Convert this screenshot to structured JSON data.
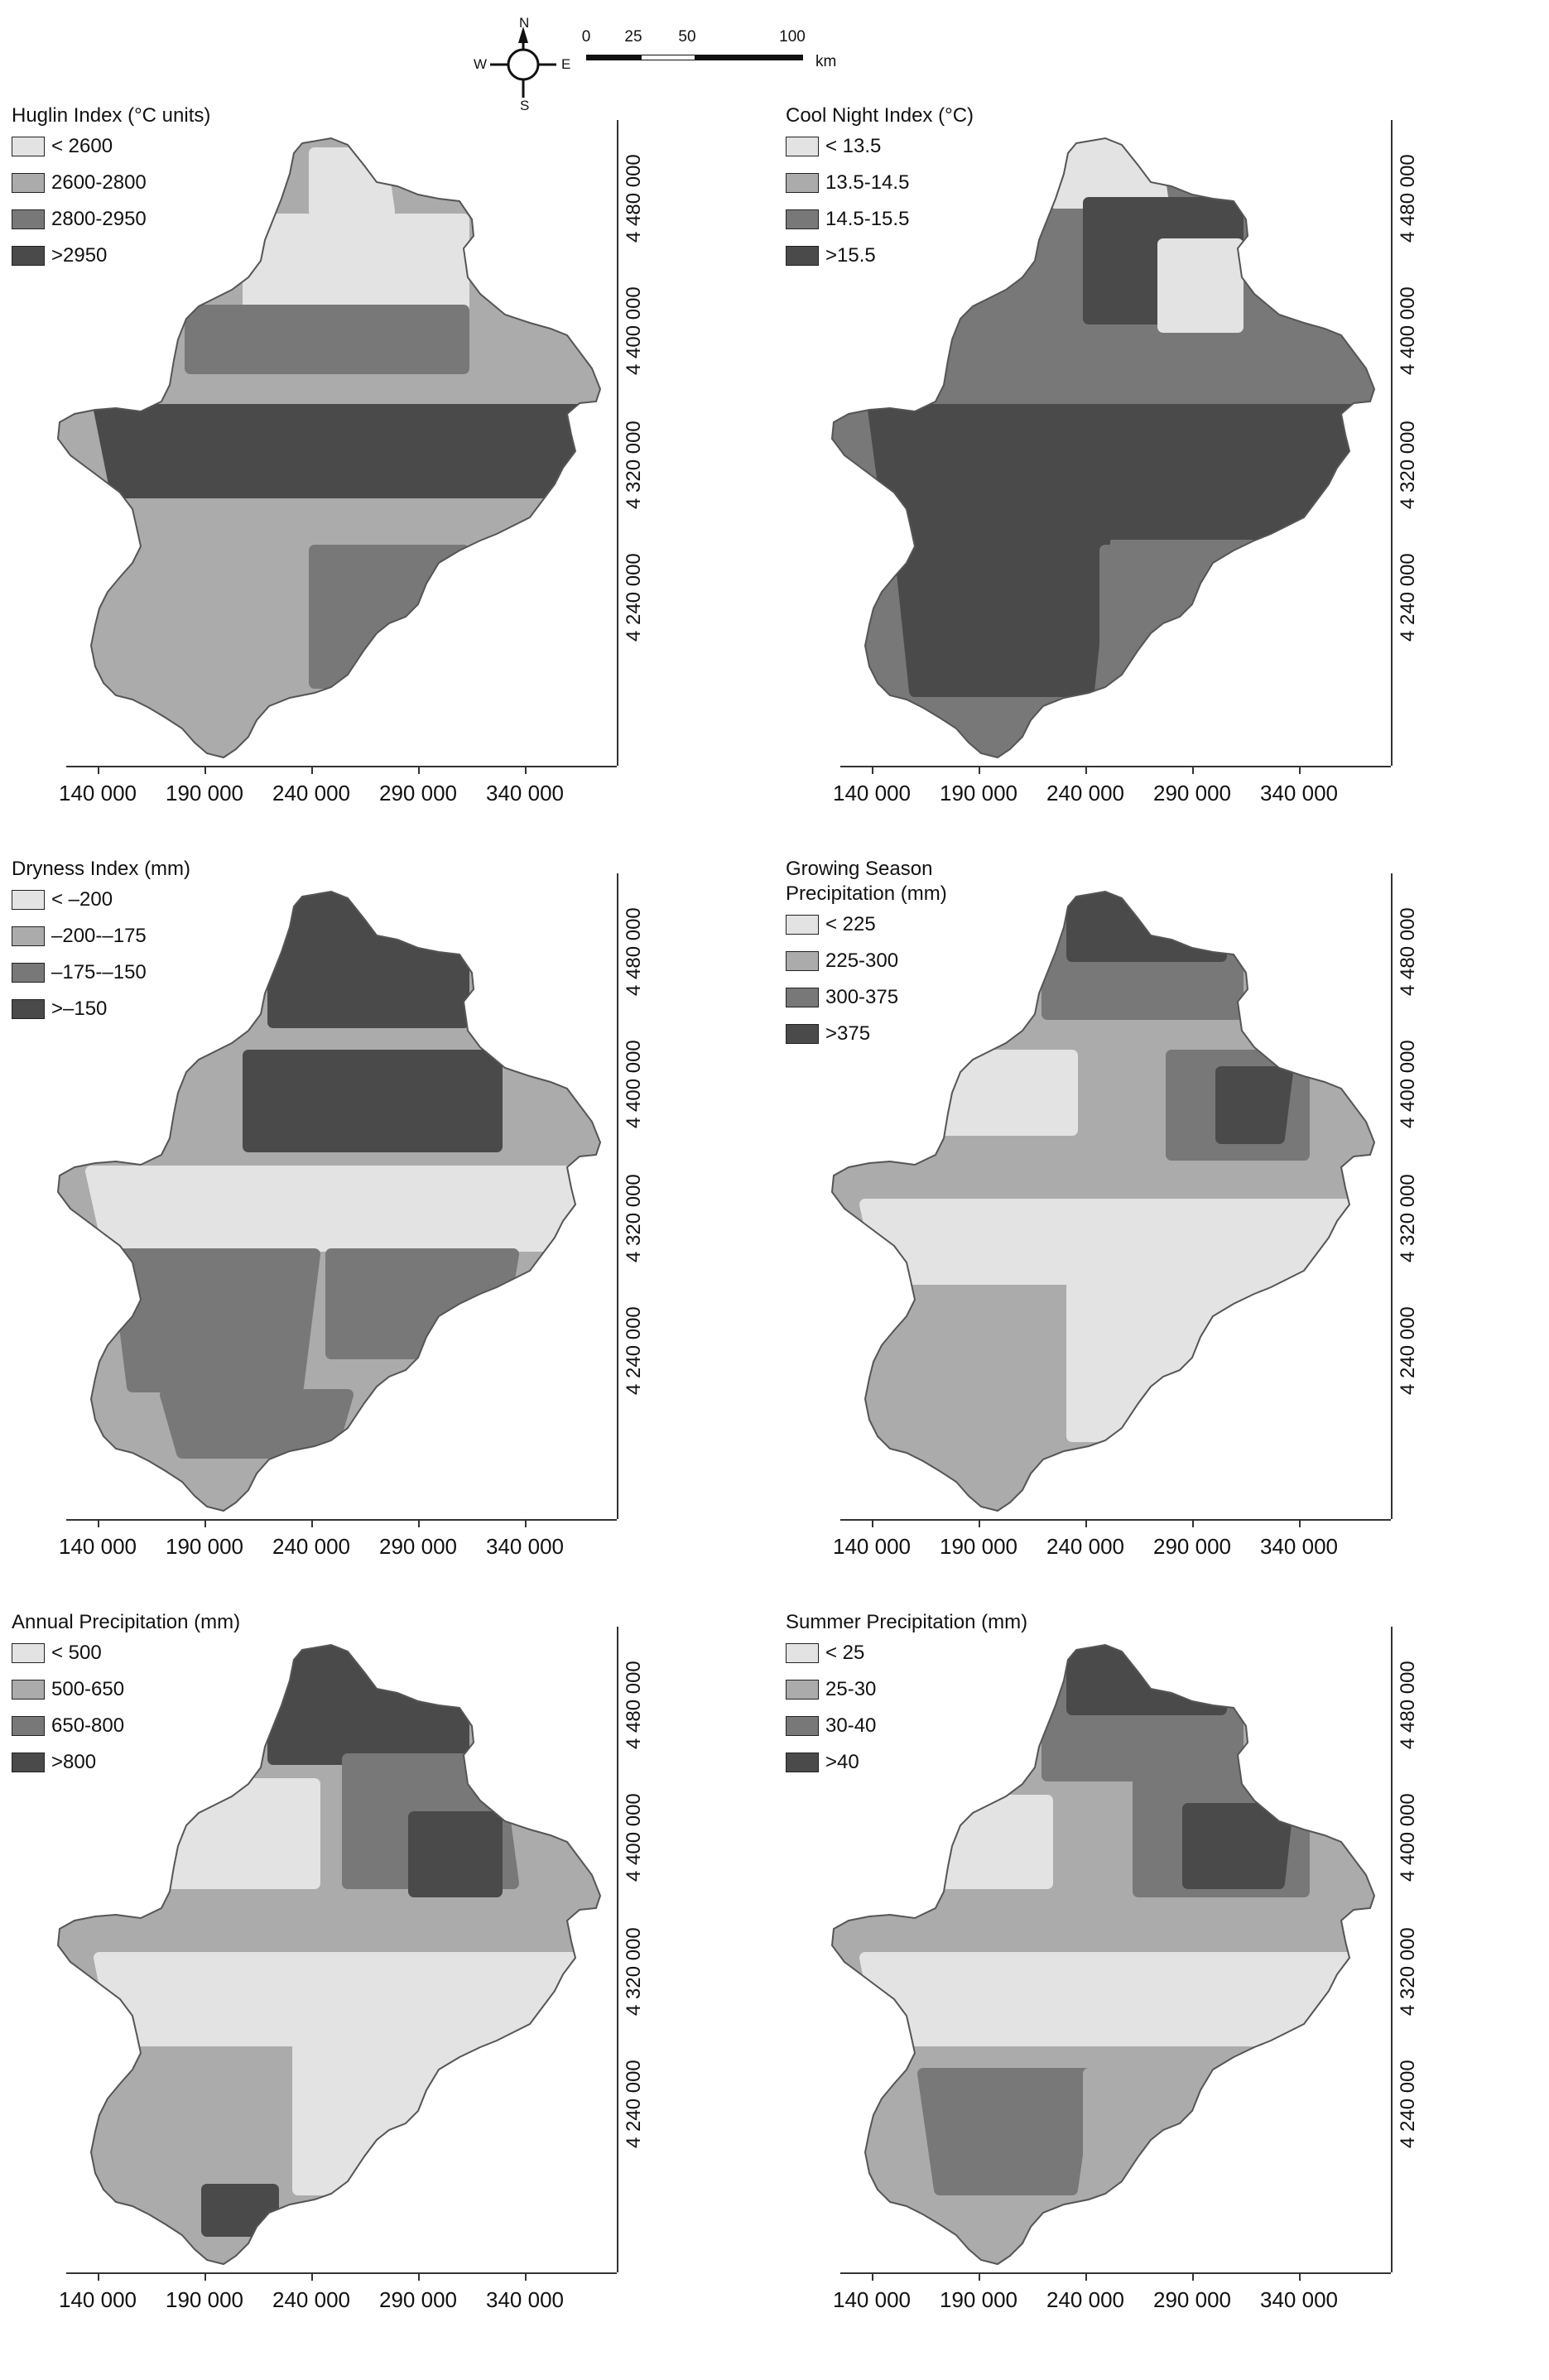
{
  "compass": {
    "n": "N",
    "s": "S",
    "e": "E",
    "w": "W"
  },
  "scale_bar": {
    "labels": [
      "0",
      "25",
      "50",
      "100"
    ],
    "unit": "km"
  },
  "axes": {
    "x_ticks": [
      "140 000",
      "190 000",
      "240 000",
      "290 000",
      "340 000"
    ],
    "y_ticks": [
      "4 480 000",
      "4 400 000",
      "4 320 000",
      "4 240 000"
    ]
  },
  "colors": {
    "class1": "#e3e3e3",
    "class2": "#ababab",
    "class3": "#787878",
    "class4": "#4a4a4a"
  },
  "panels": [
    {
      "title": "Huglin Index (°C units)",
      "legend": [
        "< 2600",
        "2600-2800",
        "2800-2950",
        ">2950"
      ]
    },
    {
      "title": "Cool Night Index (°C)",
      "legend": [
        "< 13.5",
        "13.5-14.5",
        "14.5-15.5",
        ">15.5"
      ]
    },
    {
      "title": "Dryness Index (mm)",
      "legend": [
        "< –200",
        "–200-–175",
        "–175-–150",
        ">–150"
      ]
    },
    {
      "title": "Growing Season\nPrecipitation (mm)",
      "legend": [
        "< 225",
        "225-300",
        "300-375",
        ">375"
      ]
    },
    {
      "title": "Annual Precipitation (mm)",
      "legend": [
        "< 500",
        "500-650",
        "650-800",
        ">800"
      ]
    },
    {
      "title": "Summer Precipitation (mm)",
      "legend": [
        "< 25",
        "25-30",
        "30-40",
        ">40"
      ]
    }
  ]
}
